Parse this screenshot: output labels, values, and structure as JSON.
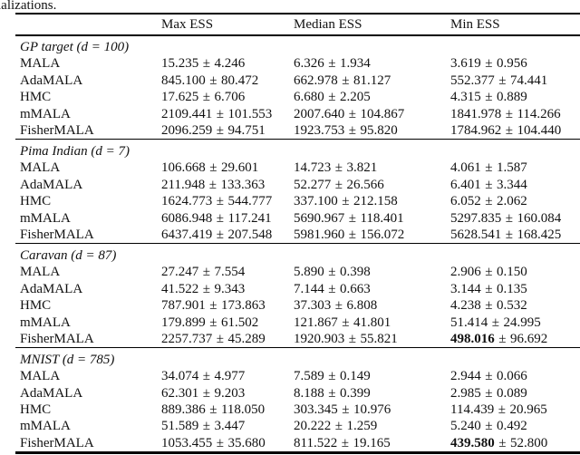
{
  "caption_fragment": "ializations.",
  "pm": "±",
  "table": {
    "columns": [
      "Max ESS",
      "Median ESS",
      "Min ESS"
    ],
    "groups": [
      {
        "title": "GP target (d = 100)",
        "rows": [
          {
            "method": "MALA",
            "cells": [
              {
                "mean": "15.235",
                "sd": "4.246",
                "bold": false
              },
              {
                "mean": "6.326",
                "sd": "1.934",
                "bold": false
              },
              {
                "mean": "3.619",
                "sd": "0.956",
                "bold": false
              }
            ]
          },
          {
            "method": "AdaMALA",
            "cells": [
              {
                "mean": "845.100",
                "sd": "80.472",
                "bold": false
              },
              {
                "mean": "662.978",
                "sd": "81.127",
                "bold": false
              },
              {
                "mean": "552.377",
                "sd": "74.441",
                "bold": false
              }
            ]
          },
          {
            "method": "HMC",
            "cells": [
              {
                "mean": "17.625",
                "sd": "6.706",
                "bold": false
              },
              {
                "mean": "6.680",
                "sd": "2.205",
                "bold": false
              },
              {
                "mean": "4.315",
                "sd": "0.889",
                "bold": false
              }
            ]
          },
          {
            "method": "mMALA",
            "cells": [
              {
                "mean": "2109.441",
                "sd": "101.553",
                "bold": false
              },
              {
                "mean": "2007.640",
                "sd": "104.867",
                "bold": false
              },
              {
                "mean": "1841.978",
                "sd": "114.266",
                "bold": false
              }
            ]
          },
          {
            "method": "FisherMALA",
            "cells": [
              {
                "mean": "2096.259",
                "sd": "94.751",
                "bold": false
              },
              {
                "mean": "1923.753",
                "sd": "95.820",
                "bold": false
              },
              {
                "mean": "1784.962",
                "sd": "104.440",
                "bold": false
              }
            ]
          }
        ]
      },
      {
        "title": "Pima Indian (d = 7)",
        "rows": [
          {
            "method": "MALA",
            "cells": [
              {
                "mean": "106.668",
                "sd": "29.601",
                "bold": false
              },
              {
                "mean": "14.723",
                "sd": "3.821",
                "bold": false
              },
              {
                "mean": "4.061",
                "sd": "1.587",
                "bold": false
              }
            ]
          },
          {
            "method": "AdaMALA",
            "cells": [
              {
                "mean": "211.948",
                "sd": "133.363",
                "bold": false
              },
              {
                "mean": "52.277",
                "sd": "26.566",
                "bold": false
              },
              {
                "mean": "6.401",
                "sd": "3.344",
                "bold": false
              }
            ]
          },
          {
            "method": "HMC",
            "cells": [
              {
                "mean": "1624.773",
                "sd": "544.777",
                "bold": false
              },
              {
                "mean": "337.100",
                "sd": "212.158",
                "bold": false
              },
              {
                "mean": "6.052",
                "sd": "2.062",
                "bold": false
              }
            ]
          },
          {
            "method": "mMALA",
            "cells": [
              {
                "mean": "6086.948",
                "sd": "117.241",
                "bold": false
              },
              {
                "mean": "5690.967",
                "sd": "118.401",
                "bold": false
              },
              {
                "mean": "5297.835",
                "sd": "160.084",
                "bold": false
              }
            ]
          },
          {
            "method": "FisherMALA",
            "cells": [
              {
                "mean": "6437.419",
                "sd": "207.548",
                "bold": false
              },
              {
                "mean": "5981.960",
                "sd": "156.072",
                "bold": false
              },
              {
                "mean": "5628.541",
                "sd": "168.425",
                "bold": false
              }
            ]
          }
        ]
      },
      {
        "title": "Caravan (d = 87)",
        "rows": [
          {
            "method": "MALA",
            "cells": [
              {
                "mean": "27.247",
                "sd": "7.554",
                "bold": false
              },
              {
                "mean": "5.890",
                "sd": "0.398",
                "bold": false
              },
              {
                "mean": "2.906",
                "sd": "0.150",
                "bold": false
              }
            ]
          },
          {
            "method": "AdaMALA",
            "cells": [
              {
                "mean": "41.522",
                "sd": "9.343",
                "bold": false
              },
              {
                "mean": "7.144",
                "sd": "0.663",
                "bold": false
              },
              {
                "mean": "3.144",
                "sd": "0.135",
                "bold": false
              }
            ]
          },
          {
            "method": "HMC",
            "cells": [
              {
                "mean": "787.901",
                "sd": "173.863",
                "bold": false
              },
              {
                "mean": "37.303",
                "sd": "6.808",
                "bold": false
              },
              {
                "mean": "4.238",
                "sd": "0.532",
                "bold": false
              }
            ]
          },
          {
            "method": "mMALA",
            "cells": [
              {
                "mean": "179.899",
                "sd": "61.502",
                "bold": false
              },
              {
                "mean": "121.867",
                "sd": "41.801",
                "bold": false
              },
              {
                "mean": "51.414",
                "sd": "24.995",
                "bold": false
              }
            ]
          },
          {
            "method": "FisherMALA",
            "cells": [
              {
                "mean": "2257.737",
                "sd": "45.289",
                "bold": false
              },
              {
                "mean": "1920.903",
                "sd": "55.821",
                "bold": false
              },
              {
                "mean": "498.016",
                "sd": "96.692",
                "bold": true
              }
            ]
          }
        ]
      },
      {
        "title": "MNIST (d = 785)",
        "rows": [
          {
            "method": "MALA",
            "cells": [
              {
                "mean": "34.074",
                "sd": "4.977",
                "bold": false
              },
              {
                "mean": "7.589",
                "sd": "0.149",
                "bold": false
              },
              {
                "mean": "2.944",
                "sd": "0.066",
                "bold": false
              }
            ]
          },
          {
            "method": "AdaMALA",
            "cells": [
              {
                "mean": "62.301",
                "sd": "9.203",
                "bold": false
              },
              {
                "mean": "8.188",
                "sd": "0.399",
                "bold": false
              },
              {
                "mean": "2.985",
                "sd": "0.089",
                "bold": false
              }
            ]
          },
          {
            "method": "HMC",
            "cells": [
              {
                "mean": "889.386",
                "sd": "118.050",
                "bold": false
              },
              {
                "mean": "303.345",
                "sd": "10.976",
                "bold": false
              },
              {
                "mean": "114.439",
                "sd": "20.965",
                "bold": false
              }
            ]
          },
          {
            "method": "mMALA",
            "cells": [
              {
                "mean": "51.589",
                "sd": "3.447",
                "bold": false
              },
              {
                "mean": "20.222",
                "sd": "1.259",
                "bold": false
              },
              {
                "mean": "5.240",
                "sd": "0.492",
                "bold": false
              }
            ]
          },
          {
            "method": "FisherMALA",
            "cells": [
              {
                "mean": "1053.455",
                "sd": "35.680",
                "bold": false
              },
              {
                "mean": "811.522",
                "sd": "19.165",
                "bold": false
              },
              {
                "mean": "439.580",
                "sd": "52.800",
                "bold": true
              }
            ]
          }
        ]
      }
    ]
  }
}
